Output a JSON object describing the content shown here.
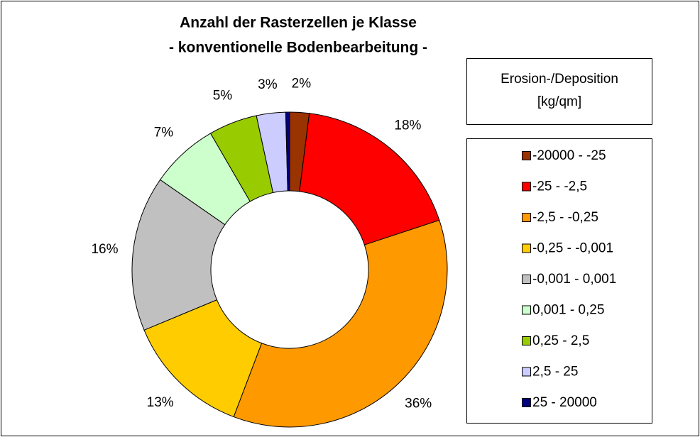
{
  "chart_data": {
    "type": "donut",
    "title": [
      "Anzahl der Rasterzellen je Klasse",
      "- konventionelle Bodenbearbeitung -"
    ],
    "legend_title": [
      "Erosion-/Deposition",
      "[kg/qm]"
    ],
    "categories": [
      "-20000 - -25",
      "-25 - -2,5",
      "-2,5 - -0,25",
      "-0,25 - -0,001",
      "-0,001 - 0,001",
      "0,001 - 0,25",
      "0,25 - 2,5",
      "2,5 - 25",
      "25 - 20000"
    ],
    "values": [
      2,
      18,
      36,
      13,
      16,
      7,
      5,
      3,
      0.4
    ],
    "value_labels": [
      "2%",
      "18%",
      "36%",
      "13%",
      "16%",
      "7%",
      "5%",
      "3%",
      null
    ],
    "colors": [
      "#993300",
      "#ff0000",
      "#ff9900",
      "#ffcc00",
      "#c0c0c0",
      "#ccffcc",
      "#99cc00",
      "#ccccff",
      "#000080"
    ],
    "legend": "right"
  }
}
